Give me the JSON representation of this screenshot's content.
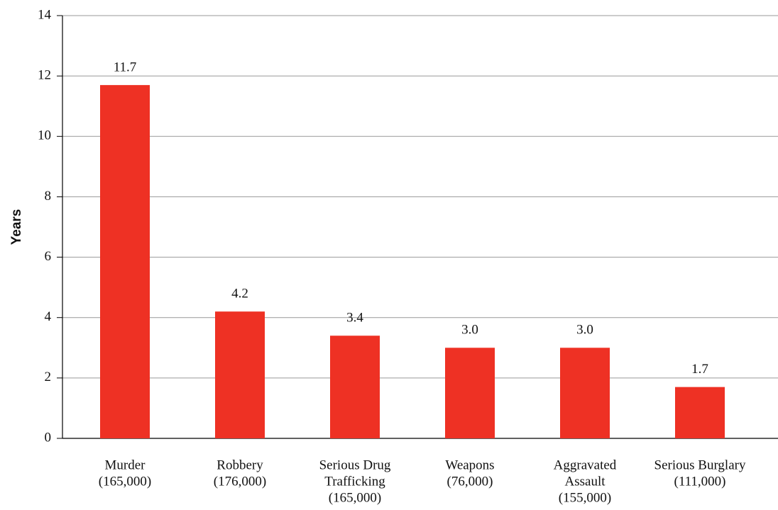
{
  "chart_data": {
    "type": "bar",
    "y_label": "Years",
    "categories": [
      [
        "Murder",
        "(165,000)"
      ],
      [
        "Robbery",
        "(176,000)"
      ],
      [
        "Serious Drug",
        "Trafficking",
        "(165,000)"
      ],
      [
        "Weapons",
        "(76,000)"
      ],
      [
        "Aggravated",
        "Assault",
        "(155,000)"
      ],
      [
        "Serious Burglary",
        "(111,000)"
      ]
    ],
    "values": [
      11.7,
      4.2,
      3.4,
      3.0,
      3.0,
      1.7
    ],
    "value_labels": [
      "11.7",
      "4.2",
      "3.4",
      "3.0",
      "3.0",
      "1.7"
    ],
    "color": "#ee3124",
    "ylim": [
      0,
      14
    ],
    "yticks": [
      0,
      2,
      4,
      6,
      8,
      10,
      12,
      14
    ],
    "grid": true
  }
}
